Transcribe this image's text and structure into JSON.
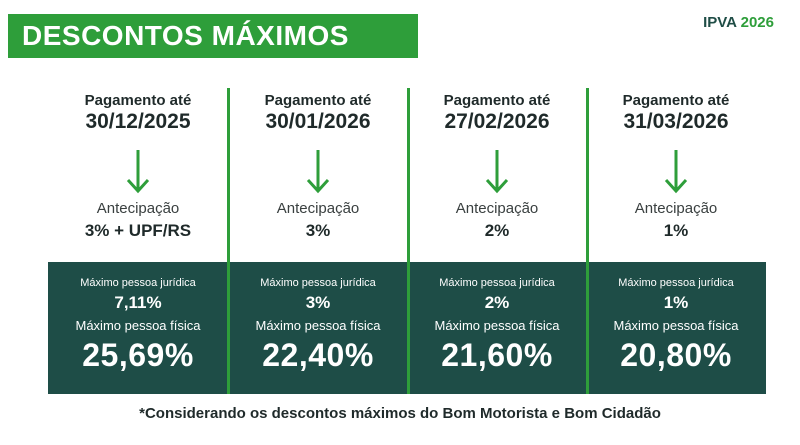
{
  "header": {
    "title": "DESCONTOS MÁXIMOS",
    "brand_prefix": "IPVA",
    "brand_year": "2026"
  },
  "columns": [
    {
      "pay_label": "Pagamento até",
      "pay_date": "30/12/2025",
      "ant_label": "Antecipação",
      "ant_value": "3% + UPF/RS",
      "pj_label": "Máximo pessoa jurídica",
      "pj_value": "7,11%",
      "pf_label": "Máximo pessoa física",
      "pf_value": "25,69%"
    },
    {
      "pay_label": "Pagamento até",
      "pay_date": "30/01/2026",
      "ant_label": "Antecipação",
      "ant_value": "3%",
      "pj_label": "Máximo pessoa jurídica",
      "pj_value": "3%",
      "pf_label": "Máximo pessoa física",
      "pf_value": "22,40%"
    },
    {
      "pay_label": "Pagamento até",
      "pay_date": "27/02/2026",
      "ant_label": "Antecipação",
      "ant_value": "2%",
      "pj_label": "Máximo pessoa jurídica",
      "pj_value": "2%",
      "pf_label": "Máximo pessoa física",
      "pf_value": "21,60%"
    },
    {
      "pay_label": "Pagamento até",
      "pay_date": "31/03/2026",
      "ant_label": "Antecipação",
      "ant_value": "1%",
      "pj_label": "Máximo pessoa jurídica",
      "pj_value": "1%",
      "pf_label": "Máximo pessoa física",
      "pf_value": "20,80%"
    }
  ],
  "footnote": "*Considerando os descontos máximos do Bom Motorista e Bom Cidadão",
  "colors": {
    "green": "#2e9e3a",
    "dark_teal": "#1e4d47"
  },
  "icons": {
    "arrow": "arrow-down-icon"
  }
}
